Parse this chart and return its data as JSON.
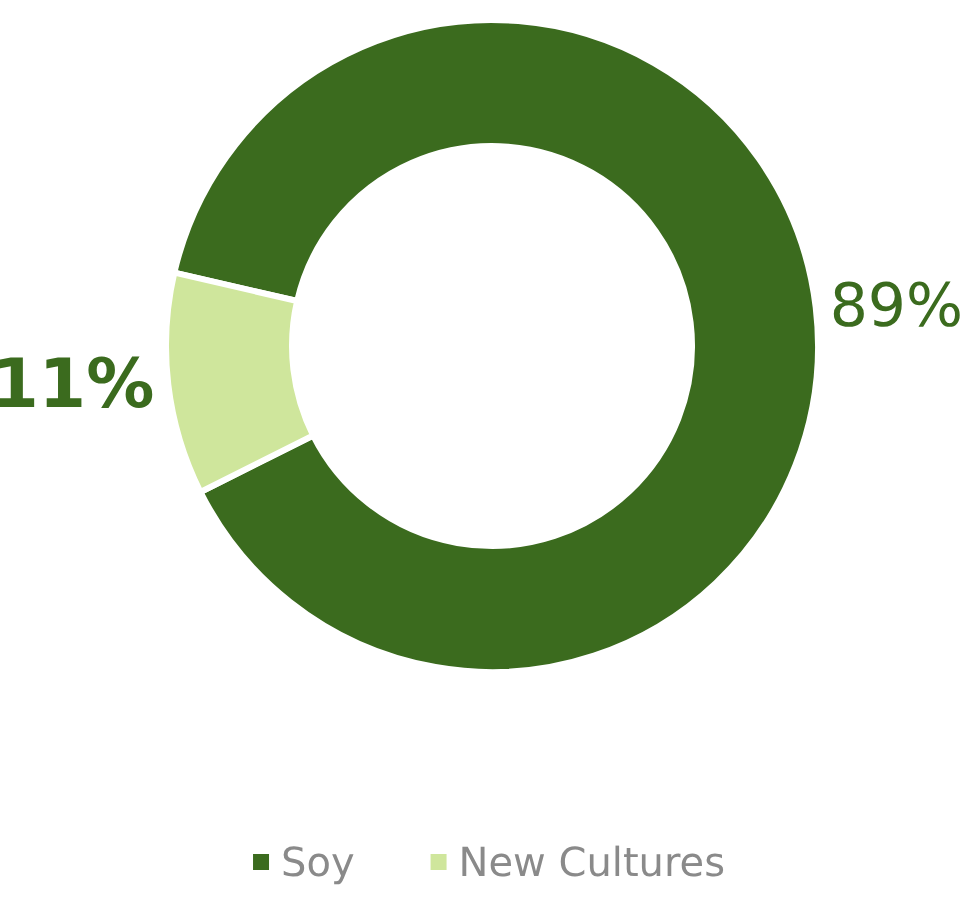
{
  "chart_data": {
    "type": "donut",
    "categories": [
      "Soy",
      "New Cultures"
    ],
    "values": [
      89,
      11
    ],
    "colors": [
      "#3b6b1e",
      "#cfe69c"
    ],
    "value_labels": [
      "89%",
      "11%"
    ],
    "legend": "bottom"
  }
}
